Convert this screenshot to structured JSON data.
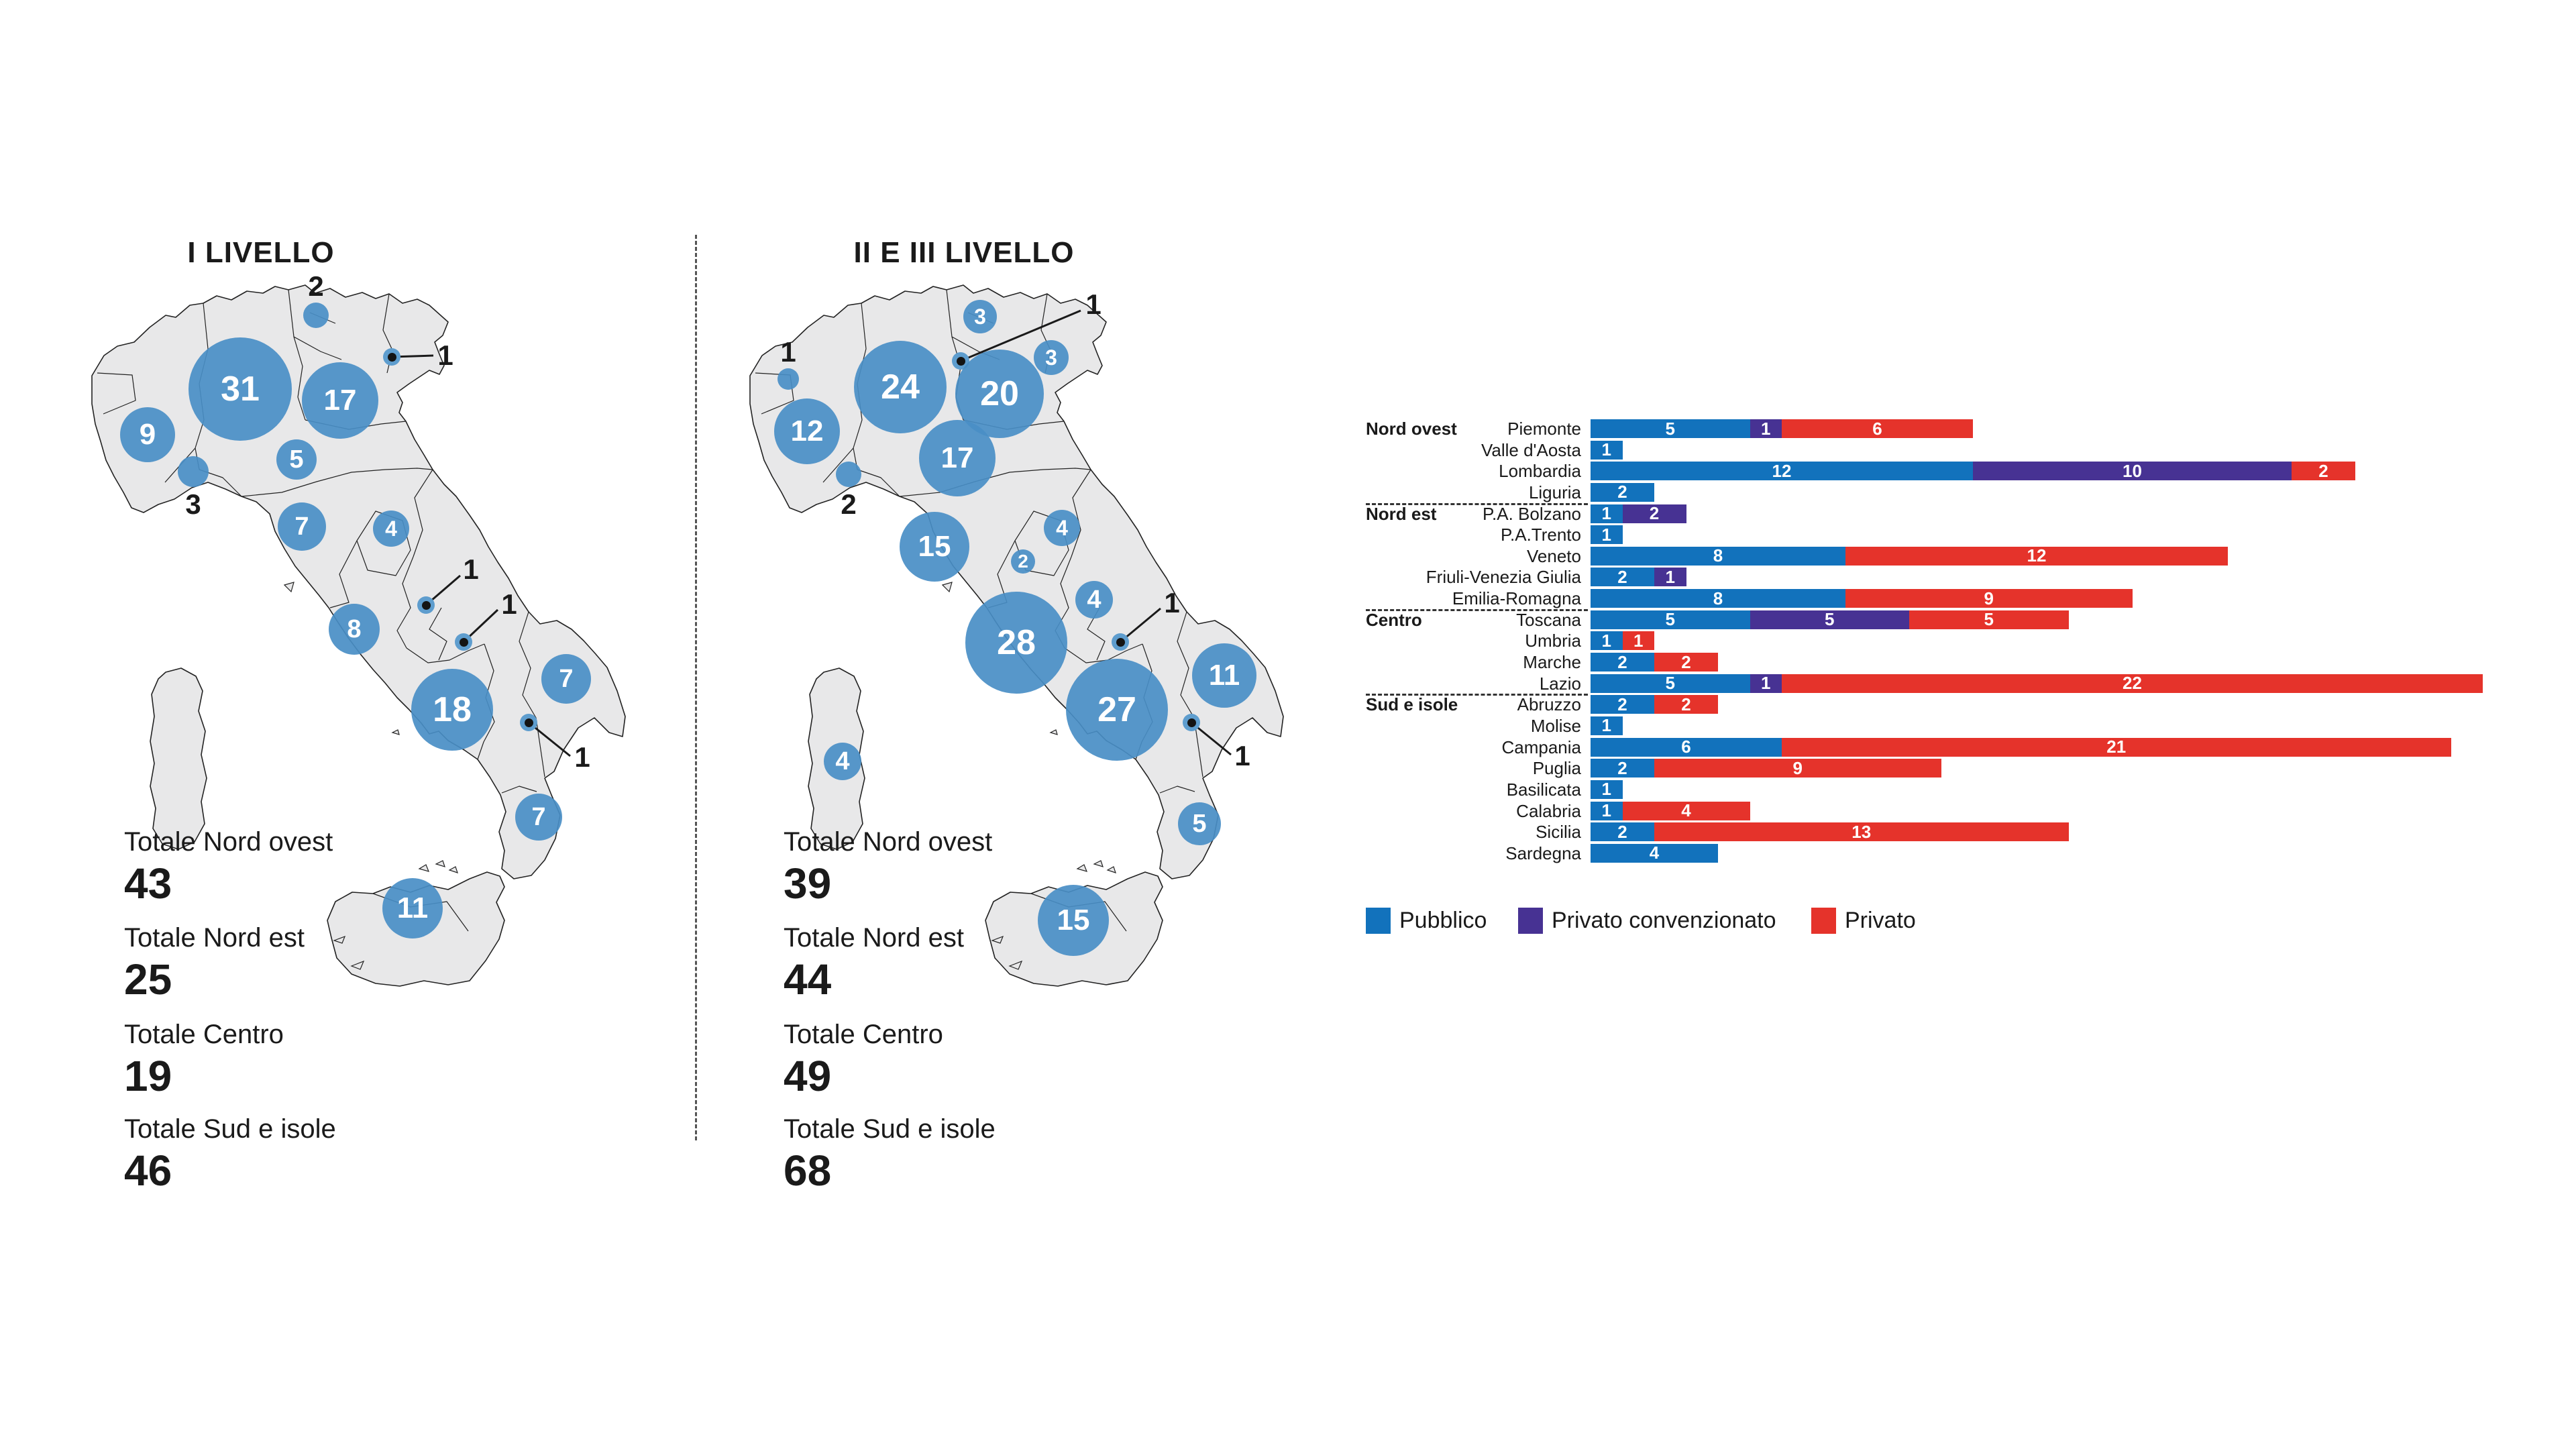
{
  "chart_data": [
    {
      "type": "bubble-map",
      "title": "I LIVELLO",
      "bubbles": [
        {
          "region": "Piemonte",
          "value": 9
        },
        {
          "region": "Lombardia",
          "value": 31
        },
        {
          "region": "P.A. Bolzano",
          "value": 2
        },
        {
          "region": "Veneto",
          "value": 17
        },
        {
          "region": "Friuli-Venezia Giulia",
          "value": 1
        },
        {
          "region": "Liguria",
          "value": 3
        },
        {
          "region": "Emilia-Romagna",
          "value": 5
        },
        {
          "region": "Toscana",
          "value": 7
        },
        {
          "region": "Marche",
          "value": 4
        },
        {
          "region": "Lazio",
          "value": 8
        },
        {
          "region": "Abruzzo",
          "value": 1
        },
        {
          "region": "Molise",
          "value": 1
        },
        {
          "region": "Campania",
          "value": 18
        },
        {
          "region": "Puglia",
          "value": 7
        },
        {
          "region": "Basilicata",
          "value": 1
        },
        {
          "region": "Calabria",
          "value": 7
        },
        {
          "region": "Sicilia",
          "value": 11
        }
      ],
      "totals": [
        {
          "label": "Totale Nord ovest",
          "value": "43"
        },
        {
          "label": "Totale Nord est",
          "value": "25"
        },
        {
          "label": "Totale Centro",
          "value": "19"
        },
        {
          "label": "Totale Sud e isole",
          "value": "46"
        }
      ]
    },
    {
      "type": "bubble-map",
      "title": "II E III LIVELLO",
      "bubbles": [
        {
          "region": "Valle d'Aosta",
          "value": 1
        },
        {
          "region": "Piemonte",
          "value": 12
        },
        {
          "region": "Lombardia",
          "value": 24
        },
        {
          "region": "Liguria",
          "value": 2
        },
        {
          "region": "P.A. Bolzano",
          "value": 3
        },
        {
          "region": "P.A. Trento",
          "value": 1
        },
        {
          "region": "Veneto",
          "value": 20
        },
        {
          "region": "Friuli-Venezia Giulia",
          "value": 3
        },
        {
          "region": "Emilia-Romagna",
          "value": 17
        },
        {
          "region": "Toscana",
          "value": 15
        },
        {
          "region": "Umbria",
          "value": 2
        },
        {
          "region": "Marche",
          "value": 4
        },
        {
          "region": "Lazio",
          "value": 28
        },
        {
          "region": "Abruzzo",
          "value": 4
        },
        {
          "region": "Molise",
          "value": 1
        },
        {
          "region": "Campania",
          "value": 27
        },
        {
          "region": "Puglia",
          "value": 11
        },
        {
          "region": "Basilicata",
          "value": 1
        },
        {
          "region": "Calabria",
          "value": 5
        },
        {
          "region": "Sicilia",
          "value": 15
        },
        {
          "region": "Sardegna",
          "value": 4
        }
      ],
      "totals": [
        {
          "label": "Totale Nord ovest",
          "value": "39"
        },
        {
          "label": "Totale Nord est",
          "value": "44"
        },
        {
          "label": "Totale Centro",
          "value": "49"
        },
        {
          "label": "Totale Sud e isole",
          "value": "68"
        }
      ]
    },
    {
      "type": "bar",
      "stacked": true,
      "orientation": "horizontal",
      "xlim": [
        0,
        28
      ],
      "series_names": [
        "Pubblico",
        "Privato convenzionato",
        "Privato"
      ],
      "legend": [
        {
          "label": "Pubblico",
          "color": "#1272bc"
        },
        {
          "label": "Privato convenzionato",
          "color": "#473293"
        },
        {
          "label": "Privato",
          "color": "#e5332b"
        }
      ],
      "groups": [
        "Nord ovest",
        "Nord est",
        "Centro",
        "Sud e isole"
      ],
      "rows": [
        {
          "region": "Piemonte",
          "group": "Nord ovest",
          "values": [
            5,
            1,
            6
          ]
        },
        {
          "region": "Valle d'Aosta",
          "group": "Nord ovest",
          "values": [
            1,
            0,
            0
          ]
        },
        {
          "region": "Lombardia",
          "group": "Nord ovest",
          "values": [
            12,
            10,
            2
          ]
        },
        {
          "region": "Liguria",
          "group": "Nord ovest",
          "values": [
            2,
            0,
            0
          ]
        },
        {
          "region": "P.A. Bolzano",
          "group": "Nord est",
          "values": [
            1,
            2,
            0
          ]
        },
        {
          "region": "P.A.Trento",
          "group": "Nord est",
          "values": [
            1,
            0,
            0
          ]
        },
        {
          "region": "Veneto",
          "group": "Nord est",
          "values": [
            8,
            0,
            12
          ]
        },
        {
          "region": "Friuli-Venezia Giulia",
          "group": "Nord est",
          "values": [
            2,
            1,
            0
          ]
        },
        {
          "region": "Emilia-Romagna",
          "group": "Nord est",
          "values": [
            8,
            0,
            9
          ]
        },
        {
          "region": "Toscana",
          "group": "Centro",
          "values": [
            5,
            5,
            5
          ]
        },
        {
          "region": "Umbria",
          "group": "Centro",
          "values": [
            1,
            0,
            1
          ]
        },
        {
          "region": "Marche",
          "group": "Centro",
          "values": [
            2,
            0,
            2
          ]
        },
        {
          "region": "Lazio",
          "group": "Centro",
          "values": [
            5,
            1,
            22
          ]
        },
        {
          "region": "Abruzzo",
          "group": "Sud e isole",
          "values": [
            2,
            0,
            2
          ]
        },
        {
          "region": "Molise",
          "group": "Sud e isole",
          "values": [
            1,
            0,
            0
          ]
        },
        {
          "region": "Campania",
          "group": "Sud e isole",
          "values": [
            6,
            0,
            21
          ]
        },
        {
          "region": "Puglia",
          "group": "Sud e isole",
          "values": [
            2,
            0,
            9
          ]
        },
        {
          "region": "Basilicata",
          "group": "Sud e isole",
          "values": [
            1,
            0,
            0
          ]
        },
        {
          "region": "Calabria",
          "group": "Sud e isole",
          "values": [
            1,
            0,
            4
          ]
        },
        {
          "region": "Sicilia",
          "group": "Sud e isole",
          "values": [
            2,
            0,
            13
          ]
        },
        {
          "region": "Sardegna",
          "group": "Sud e isole",
          "values": [
            4,
            0,
            0
          ]
        }
      ]
    }
  ],
  "colors": {
    "bubble": "#498ec5",
    "map_fill": "#e8e8e9",
    "map_stroke": "#222222",
    "pubblico": "#1272bc",
    "privato_convenzionato": "#473293",
    "privato": "#e5332b"
  }
}
